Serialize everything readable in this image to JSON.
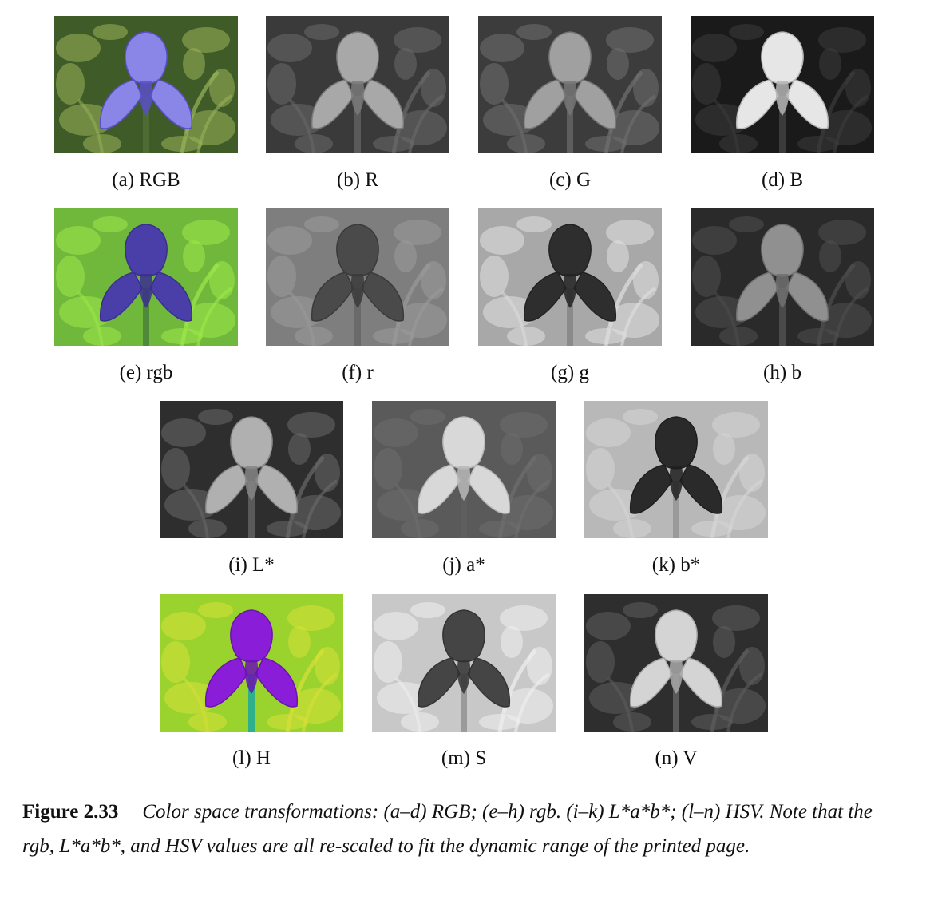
{
  "panels": [
    {
      "id": "a",
      "caption": "(a) RGB",
      "bg": "#3f5c28",
      "bg2": "#9ab35a",
      "petal": "#8a86e8",
      "petal_edge": "#5a4fc8",
      "stem": "#4d6b32"
    },
    {
      "id": "b",
      "caption": "(b) R",
      "bg": "#3a3a3a",
      "bg2": "#6a6a6a",
      "petal": "#a8a8a8",
      "petal_edge": "#7a7a7a",
      "stem": "#5a5a5a"
    },
    {
      "id": "c",
      "caption": "(c) G",
      "bg": "#3c3c3c",
      "bg2": "#707070",
      "petal": "#a0a0a0",
      "petal_edge": "#757575",
      "stem": "#5e5e5e"
    },
    {
      "id": "d",
      "caption": "(d) B",
      "bg": "#1a1a1a",
      "bg2": "#3c3c3c",
      "petal": "#e6e6e6",
      "petal_edge": "#b5b5b5",
      "stem": "#3a3a3a"
    },
    {
      "id": "e",
      "caption": "(e) rgb",
      "bg": "#6fb83c",
      "bg2": "#9ee84a",
      "petal": "#4a3fa8",
      "petal_edge": "#3a2e8e",
      "stem": "#4f8a3a"
    },
    {
      "id": "f",
      "caption": "(f) r",
      "bg": "#7e7e7e",
      "bg2": "#9a9a9a",
      "petal": "#4a4a4a",
      "petal_edge": "#3a3a3a",
      "stem": "#6a6a6a"
    },
    {
      "id": "g",
      "caption": "(g) g",
      "bg": "#a8a8a8",
      "bg2": "#e0e0e0",
      "petal": "#2e2e2e",
      "petal_edge": "#222222",
      "stem": "#8a8a8a"
    },
    {
      "id": "h",
      "caption": "(h) b",
      "bg": "#2a2a2a",
      "bg2": "#4e4e4e",
      "petal": "#909090",
      "petal_edge": "#707070",
      "stem": "#4a4a4a"
    },
    {
      "id": "i",
      "caption": "(i) L*",
      "bg": "#2e2e2e",
      "bg2": "#6a6a6a",
      "petal": "#b0b0b0",
      "petal_edge": "#858585",
      "stem": "#5a5a5a"
    },
    {
      "id": "j",
      "caption": "(j) a*",
      "bg": "#5a5a5a",
      "bg2": "#6e6e6e",
      "petal": "#d8d8d8",
      "petal_edge": "#b8b8b8",
      "stem": "#5e5e5e"
    },
    {
      "id": "k",
      "caption": "(k) b*",
      "bg": "#b8b8b8",
      "bg2": "#d6d6d6",
      "petal": "#2a2a2a",
      "petal_edge": "#1e1e1e",
      "stem": "#9a9a9a"
    },
    {
      "id": "l",
      "caption": "(l) H",
      "bg": "#9ad22e",
      "bg2": "#d8e03a",
      "petal": "#8a1ed8",
      "petal_edge": "#6a14b0",
      "stem": "#2fb08a"
    },
    {
      "id": "m",
      "caption": "(m) S",
      "bg": "#c8c8c8",
      "bg2": "#f0f0f0",
      "petal": "#454545",
      "petal_edge": "#333333",
      "stem": "#9a9a9a"
    },
    {
      "id": "n",
      "caption": "(n) V",
      "bg": "#2e2e2e",
      "bg2": "#5e5e5e",
      "petal": "#d4d4d4",
      "petal_edge": "#a8a8a8",
      "stem": "#5a5a5a"
    }
  ],
  "figure": {
    "number": "Figure 2.33",
    "caption": "Color space transformations: (a–d) RGB; (e–h) rgb. (i–k) L*a*b*; (l–n) HSV. Note that the rgb, L*a*b*, and HSV values are all re-scaled to fit the dynamic range of the printed page."
  }
}
